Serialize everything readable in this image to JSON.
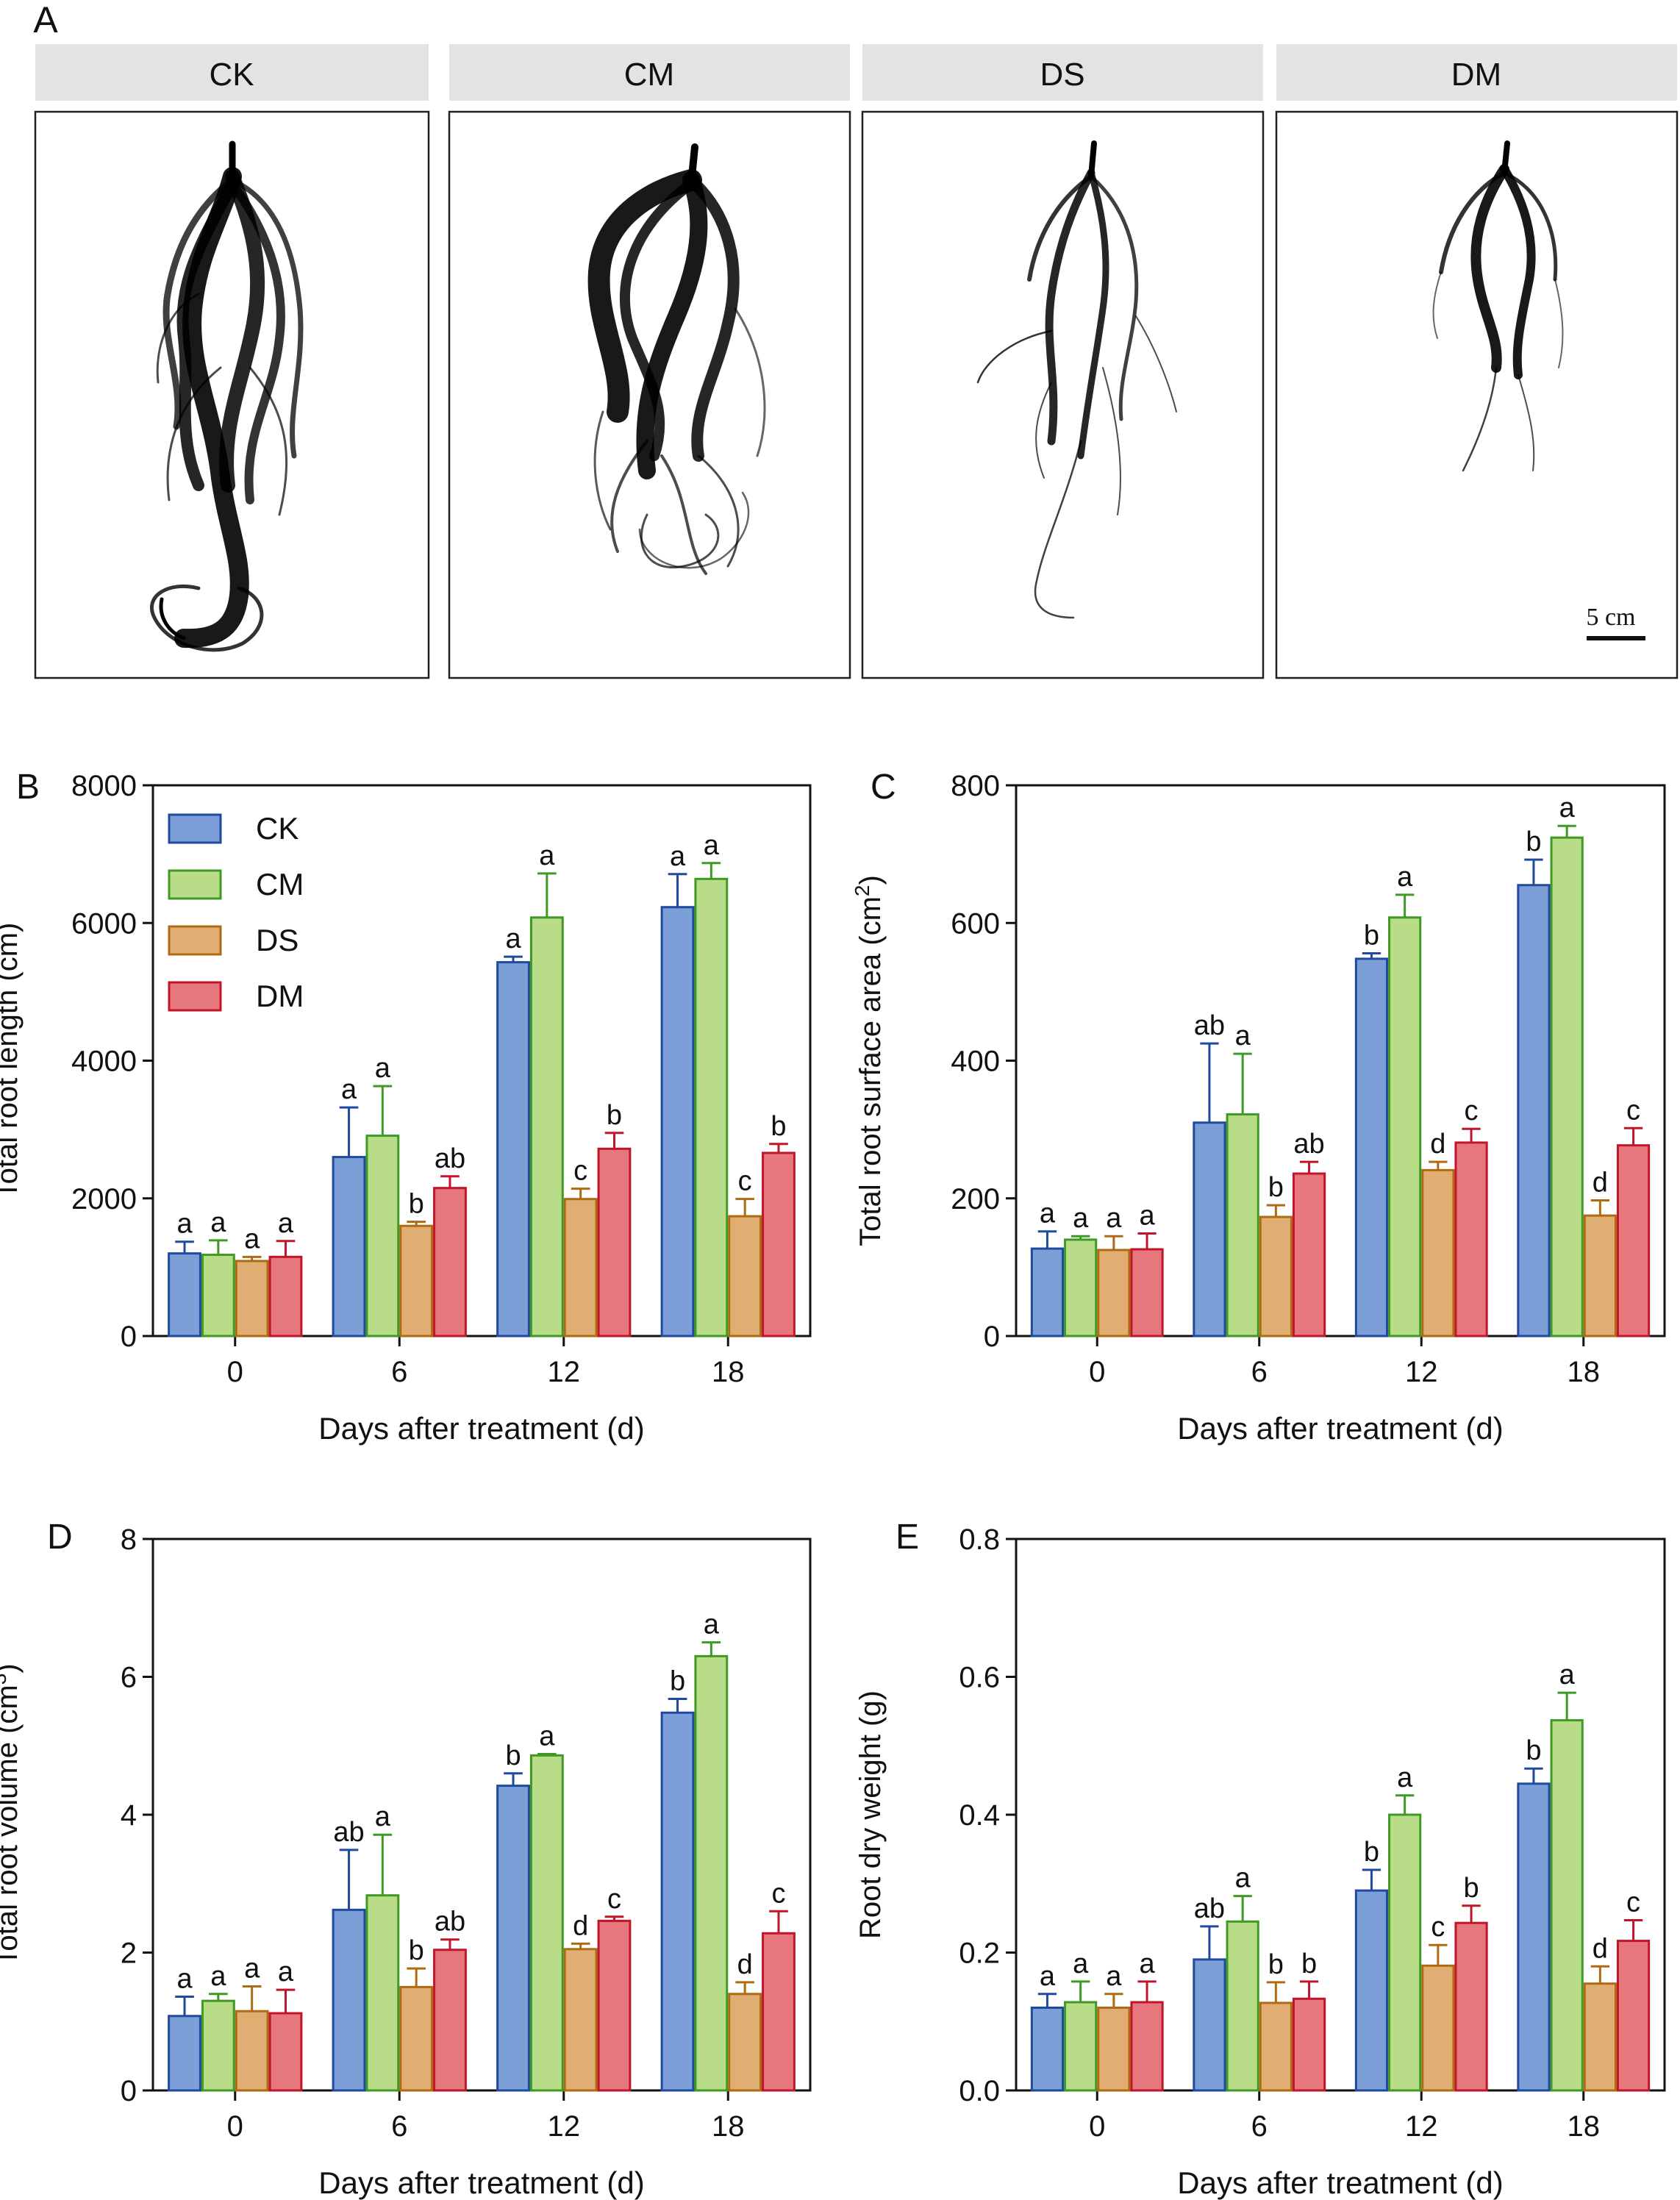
{
  "panel_a": {
    "label": "A",
    "treatments": [
      "CK",
      "CM",
      "DS",
      "DM"
    ],
    "scale_bar_label": "5 cm"
  },
  "colors": {
    "CK": {
      "fill": "#7b9fd6",
      "stroke": "#1f4aa0"
    },
    "CM": {
      "fill": "#b8dc88",
      "stroke": "#3f9a24"
    },
    "DS": {
      "fill": "#e0ad72",
      "stroke": "#b06a12"
    },
    "DM": {
      "fill": "#e6777d",
      "stroke": "#c0152a"
    },
    "header_bg": "#e3e3e3"
  },
  "chart_data": [
    {
      "panel": "B",
      "type": "bar",
      "categories": [
        "0",
        "6",
        "12",
        "18"
      ],
      "xlabel": "Days after treatment (d)",
      "ylabel": "Total root length (cm)",
      "ylim": [
        0,
        8000
      ],
      "yticks": [
        "0",
        "2000",
        "4000",
        "6000",
        "8000"
      ],
      "legend": {
        "position": "top-left",
        "entries": [
          "CK",
          "CM",
          "DS",
          "DM"
        ]
      },
      "series": [
        {
          "name": "CK",
          "values": [
            1200,
            2600,
            5430,
            6230
          ],
          "errors": [
            170,
            720,
            80,
            480
          ],
          "letters": [
            "a",
            "a",
            "a",
            "a"
          ]
        },
        {
          "name": "CM",
          "values": [
            1180,
            2910,
            6080,
            6640
          ],
          "errors": [
            210,
            720,
            640,
            230
          ],
          "letters": [
            "a",
            "a",
            "a",
            "a"
          ]
        },
        {
          "name": "DS",
          "values": [
            1090,
            1600,
            1990,
            1740
          ],
          "errors": [
            60,
            60,
            150,
            250
          ],
          "letters": [
            "a",
            "b",
            "c",
            "c"
          ]
        },
        {
          "name": "DM",
          "values": [
            1150,
            2150,
            2720,
            2660
          ],
          "errors": [
            230,
            170,
            230,
            130
          ],
          "letters": [
            "a",
            "ab",
            "b",
            "b"
          ]
        }
      ]
    },
    {
      "panel": "C",
      "type": "bar",
      "categories": [
        "0",
        "6",
        "12",
        "18"
      ],
      "xlabel": "Days after treatment (d)",
      "ylabel": "Total root surface area (cm",
      "ylabel_sup": "2",
      "ylabel_end": ")",
      "ylim": [
        0,
        800
      ],
      "yticks": [
        "0",
        "200",
        "400",
        "600",
        "800"
      ],
      "series": [
        {
          "name": "CK",
          "values": [
            127,
            310,
            548,
            655
          ],
          "errors": [
            25,
            115,
            8,
            37
          ],
          "letters": [
            "a",
            "ab",
            "b",
            "b"
          ]
        },
        {
          "name": "CM",
          "values": [
            140,
            322,
            608,
            724
          ],
          "errors": [
            5,
            88,
            33,
            17
          ],
          "letters": [
            "a",
            "a",
            "a",
            "a"
          ]
        },
        {
          "name": "DS",
          "values": [
            125,
            173,
            241,
            175
          ],
          "errors": [
            20,
            17,
            12,
            22
          ],
          "letters": [
            "a",
            "b",
            "d",
            "d"
          ]
        },
        {
          "name": "DM",
          "values": [
            126,
            236,
            281,
            277
          ],
          "errors": [
            23,
            17,
            20,
            25
          ],
          "letters": [
            "a",
            "ab",
            "c",
            "c"
          ]
        }
      ]
    },
    {
      "panel": "D",
      "type": "bar",
      "categories": [
        "0",
        "6",
        "12",
        "18"
      ],
      "xlabel": "Days after treatment (d)",
      "ylabel": "Total root volume (cm",
      "ylabel_sup": "3",
      "ylabel_end": ")",
      "ylim": [
        0,
        8
      ],
      "yticks": [
        "0",
        "2",
        "4",
        "6",
        "8"
      ],
      "series": [
        {
          "name": "CK",
          "values": [
            1.08,
            2.62,
            4.42,
            5.48
          ],
          "errors": [
            0.28,
            0.87,
            0.18,
            0.2
          ],
          "letters": [
            "a",
            "ab",
            "b",
            "b"
          ]
        },
        {
          "name": "CM",
          "values": [
            1.3,
            2.83,
            4.86,
            6.3
          ],
          "errors": [
            0.1,
            0.88,
            0.02,
            0.2
          ],
          "letters": [
            "a",
            "a",
            "a",
            "a"
          ]
        },
        {
          "name": "DS",
          "values": [
            1.15,
            1.5,
            2.05,
            1.4
          ],
          "errors": [
            0.36,
            0.27,
            0.08,
            0.17
          ],
          "letters": [
            "a",
            "b",
            "d",
            "d"
          ]
        },
        {
          "name": "DM",
          "values": [
            1.12,
            2.04,
            2.46,
            2.28
          ],
          "errors": [
            0.34,
            0.15,
            0.06,
            0.32
          ],
          "letters": [
            "a",
            "ab",
            "c",
            "c"
          ]
        }
      ]
    },
    {
      "panel": "E",
      "type": "bar",
      "categories": [
        "0",
        "6",
        "12",
        "18"
      ],
      "xlabel": "Days after treatment (d)",
      "ylabel": "Root dry weight (g)",
      "ylim": [
        0,
        0.8
      ],
      "yticks": [
        "0.0",
        "0.2",
        "0.4",
        "0.6",
        "0.8"
      ],
      "series": [
        {
          "name": "CK",
          "values": [
            0.12,
            0.19,
            0.29,
            0.445
          ],
          "errors": [
            0.02,
            0.048,
            0.03,
            0.022
          ],
          "letters": [
            "a",
            "ab",
            "b",
            "b"
          ]
        },
        {
          "name": "CM",
          "values": [
            0.128,
            0.245,
            0.4,
            0.537
          ],
          "errors": [
            0.03,
            0.037,
            0.028,
            0.04
          ],
          "letters": [
            "a",
            "a",
            "a",
            "a"
          ]
        },
        {
          "name": "DS",
          "values": [
            0.12,
            0.127,
            0.181,
            0.155
          ],
          "errors": [
            0.02,
            0.03,
            0.03,
            0.025
          ],
          "letters": [
            "a",
            "b",
            "c",
            "d"
          ]
        },
        {
          "name": "DM",
          "values": [
            0.128,
            0.133,
            0.243,
            0.217
          ],
          "errors": [
            0.03,
            0.025,
            0.025,
            0.03
          ],
          "letters": [
            "a",
            "b",
            "b",
            "c"
          ]
        }
      ]
    }
  ]
}
